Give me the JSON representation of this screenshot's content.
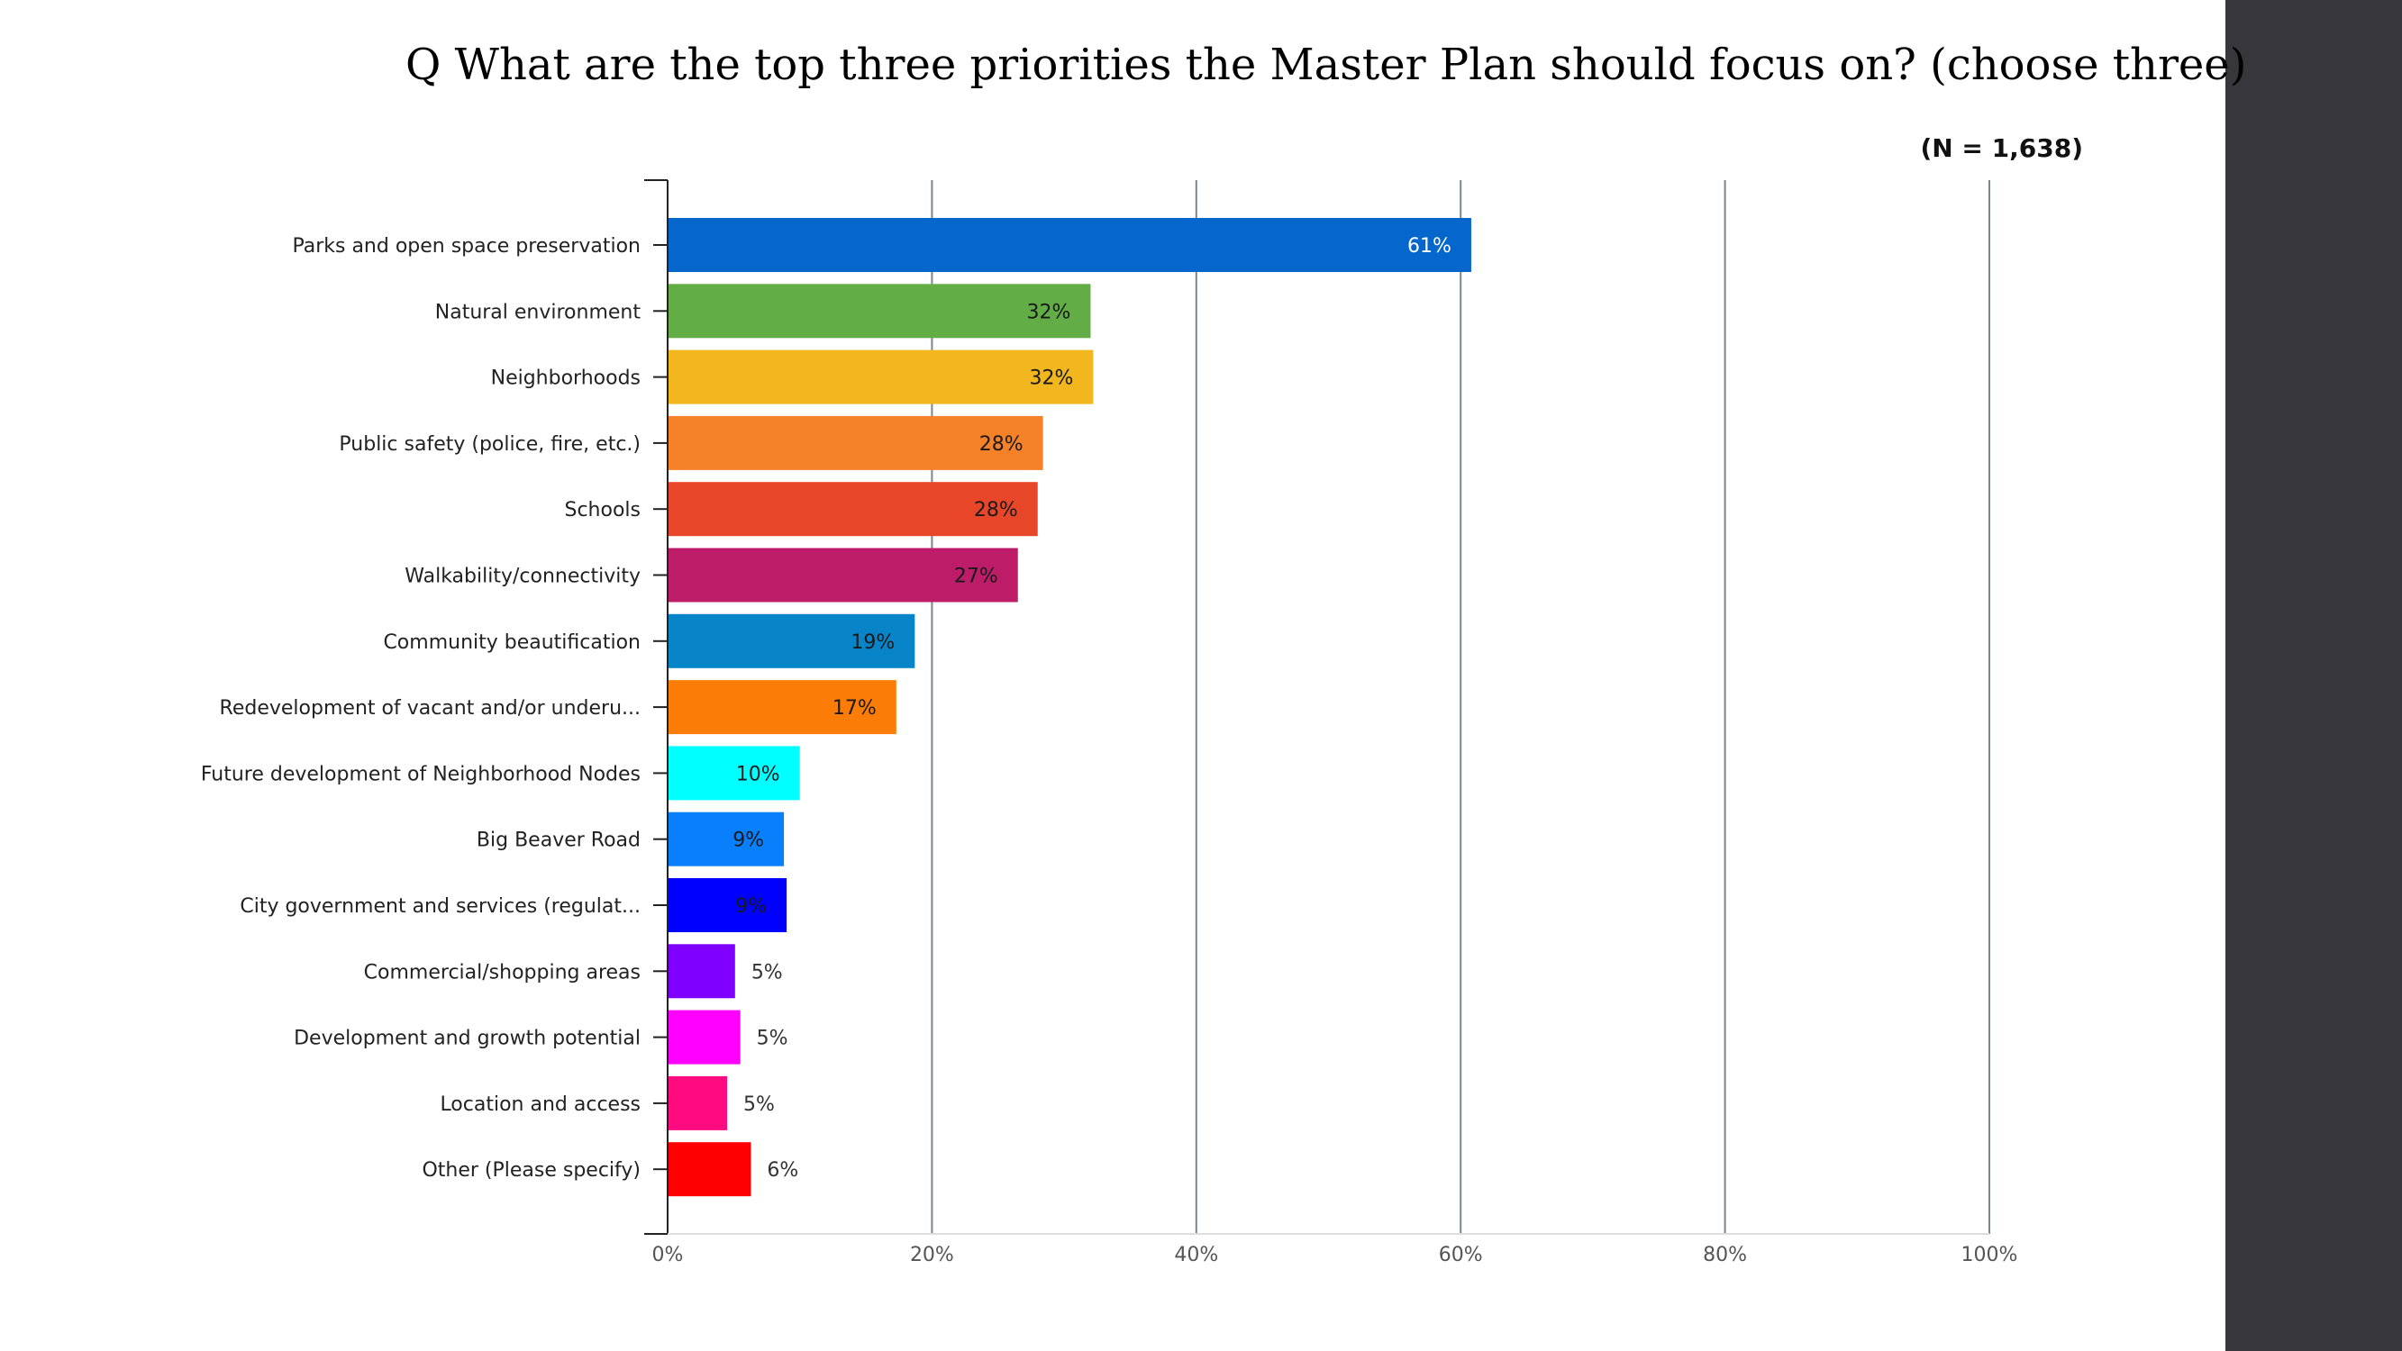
{
  "slide": {
    "title": "Q What are the top three priorities the Master Plan should focus on? (choose three)",
    "sidebar_color": "#37373b"
  },
  "chart_data": {
    "type": "bar",
    "orientation": "horizontal",
    "title": "",
    "subtitle": "(N = 1,638)",
    "xlabel": "",
    "ylabel": "",
    "xlim": [
      0,
      100
    ],
    "x_ticks": [
      0,
      20,
      40,
      60,
      80,
      100
    ],
    "x_tick_labels": [
      "0%",
      "20%",
      "40%",
      "60%",
      "80%",
      "100%"
    ],
    "grid": true,
    "legend": "none",
    "categories": [
      "Parks and open space preservation",
      "Natural environment",
      "Neighborhoods",
      "Public safety (police, fire, etc.)",
      "Schools",
      "Walkability/connectivity",
      "Community beautification",
      "Redevelopment of vacant and/or underu...",
      "Future development of Neighborhood Nodes",
      "Big Beaver Road",
      "City government and services (regulat...",
      "Commercial/shopping areas",
      "Development and growth potential",
      "Location and access",
      "Other (Please specify)"
    ],
    "values": [
      60.8,
      32.0,
      32.2,
      28.4,
      28.0,
      26.5,
      18.7,
      17.3,
      10.0,
      8.8,
      9.0,
      5.1,
      5.5,
      4.5,
      6.3
    ],
    "value_labels": [
      "61%",
      "32%",
      "32%",
      "28%",
      "28%",
      "27%",
      "19%",
      "17%",
      "10%",
      "9%",
      "9%",
      "5%",
      "5%",
      "5%",
      "6%"
    ],
    "colors": [
      "#0566cc",
      "#63ad47",
      "#f2b61e",
      "#f58228",
      "#e84629",
      "#bd1d68",
      "#0885c9",
      "#fb7d07",
      "#00ffff",
      "#0a7ffb",
      "#0000ff",
      "#7f00ff",
      "#ff00ff",
      "#ff0a7f",
      "#ff0000"
    ]
  }
}
